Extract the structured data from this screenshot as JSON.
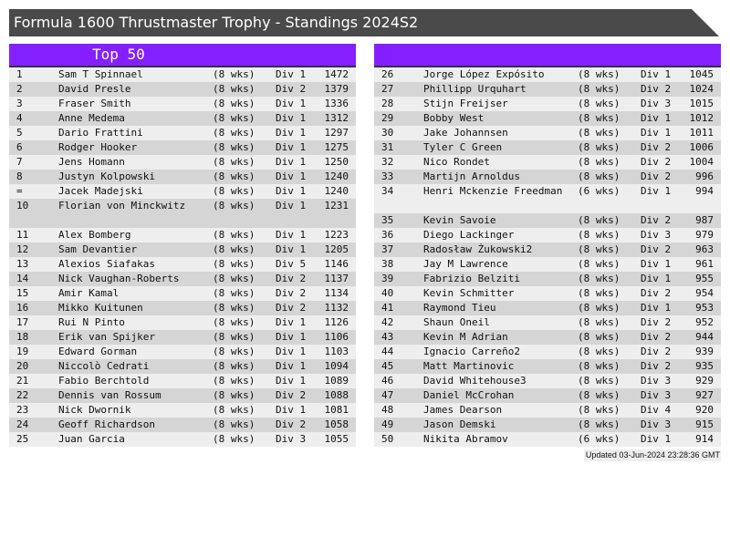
{
  "title": "Formula 1600 Thrustmaster Trophy - Standings 2024S2",
  "left_table": {
    "header": "Top 50",
    "rows": [
      {
        "rank": "1",
        "name": "Sam T Spinnael",
        "weeks": "(8 wks)",
        "div": "Div 1",
        "score": "1472"
      },
      {
        "rank": "2",
        "name": "David Presle",
        "weeks": "(8 wks)",
        "div": "Div 2",
        "score": "1379"
      },
      {
        "rank": "3",
        "name": "Fraser Smith",
        "weeks": "(8 wks)",
        "div": "Div 1",
        "score": "1336"
      },
      {
        "rank": "4",
        "name": "Anne Medema",
        "weeks": "(8 wks)",
        "div": "Div 1",
        "score": "1312"
      },
      {
        "rank": "5",
        "name": "Dario Frattini",
        "weeks": "(8 wks)",
        "div": "Div 1",
        "score": "1297"
      },
      {
        "rank": "6",
        "name": "Rodger Hooker",
        "weeks": "(8 wks)",
        "div": "Div 1",
        "score": "1275"
      },
      {
        "rank": "7",
        "name": "Jens Homann",
        "weeks": "(8 wks)",
        "div": "Div 1",
        "score": "1250"
      },
      {
        "rank": "8",
        "name": "Justyn Kolpowski",
        "weeks": "(8 wks)",
        "div": "Div 1",
        "score": "1240"
      },
      {
        "rank": "=",
        "name": "Jacek Madejski",
        "weeks": "(8 wks)",
        "div": "Div 1",
        "score": "1240"
      },
      {
        "rank": "10",
        "name": "Florian von Minckwitz",
        "weeks": "(8 wks)",
        "div": "Div 1",
        "score": "1231"
      },
      {
        "rank": "11",
        "name": "Alex Bomberg",
        "weeks": "(8 wks)",
        "div": "Div 1",
        "score": "1223"
      },
      {
        "rank": "12",
        "name": "Sam Devantier",
        "weeks": "(8 wks)",
        "div": "Div 1",
        "score": "1205"
      },
      {
        "rank": "13",
        "name": "Alexios Siafakas",
        "weeks": "(8 wks)",
        "div": "Div 5",
        "score": "1146"
      },
      {
        "rank": "14",
        "name": "Nick Vaughan-Roberts",
        "weeks": "(8 wks)",
        "div": "Div 2",
        "score": "1137"
      },
      {
        "rank": "15",
        "name": "Amir Kamal",
        "weeks": "(8 wks)",
        "div": "Div 2",
        "score": "1134"
      },
      {
        "rank": "16",
        "name": "Mikko Kuitunen",
        "weeks": "(8 wks)",
        "div": "Div 2",
        "score": "1132"
      },
      {
        "rank": "17",
        "name": "Rui N Pinto",
        "weeks": "(8 wks)",
        "div": "Div 1",
        "score": "1126"
      },
      {
        "rank": "18",
        "name": "Erik van Spijker",
        "weeks": "(8 wks)",
        "div": "Div 1",
        "score": "1106"
      },
      {
        "rank": "19",
        "name": "Edward Gorman",
        "weeks": "(8 wks)",
        "div": "Div 1",
        "score": "1103"
      },
      {
        "rank": "20",
        "name": "Niccolò Cedrati",
        "weeks": "(8 wks)",
        "div": "Div 1",
        "score": "1094"
      },
      {
        "rank": "21",
        "name": "Fabio Berchtold",
        "weeks": "(8 wks)",
        "div": "Div 1",
        "score": "1089"
      },
      {
        "rank": "22",
        "name": "Dennis van Rossum",
        "weeks": "(8 wks)",
        "div": "Div 2",
        "score": "1088"
      },
      {
        "rank": "23",
        "name": "Nick Dwornik",
        "weeks": "(8 wks)",
        "div": "Div 1",
        "score": "1081"
      },
      {
        "rank": "24",
        "name": "Geoff Richardson",
        "weeks": "(8 wks)",
        "div": "Div 2",
        "score": "1058"
      },
      {
        "rank": "25",
        "name": "Juan Garcia",
        "weeks": "(8 wks)",
        "div": "Div 3",
        "score": "1055"
      }
    ]
  },
  "right_table": {
    "header": "",
    "rows": [
      {
        "rank": "26",
        "name": "Jorge López Expósito",
        "weeks": "(8 wks)",
        "div": "Div 1",
        "score": "1045"
      },
      {
        "rank": "27",
        "name": "Phillipp Urquhart",
        "weeks": "(8 wks)",
        "div": "Div 2",
        "score": "1024"
      },
      {
        "rank": "28",
        "name": "Stijn Freijser",
        "weeks": "(8 wks)",
        "div": "Div 3",
        "score": "1015"
      },
      {
        "rank": "29",
        "name": "Bobby West",
        "weeks": "(8 wks)",
        "div": "Div 1",
        "score": "1012"
      },
      {
        "rank": "30",
        "name": "Jake Johannsen",
        "weeks": "(8 wks)",
        "div": "Div 1",
        "score": "1011"
      },
      {
        "rank": "31",
        "name": "Tyler C Green",
        "weeks": "(8 wks)",
        "div": "Div 2",
        "score": "1006"
      },
      {
        "rank": "32",
        "name": "Nico Rondet",
        "weeks": "(8 wks)",
        "div": "Div 2",
        "score": "1004"
      },
      {
        "rank": "33",
        "name": "Martijn Arnoldus",
        "weeks": "(8 wks)",
        "div": "Div 2",
        "score": "996"
      },
      {
        "rank": "34",
        "name": "Henri Mckenzie Freedman",
        "weeks": "(6 wks)",
        "div": "Div 1",
        "score": "994"
      },
      {
        "rank": "35",
        "name": "Kevin Savoie",
        "weeks": "(8 wks)",
        "div": "Div 2",
        "score": "987"
      },
      {
        "rank": "36",
        "name": "Diego Lackinger",
        "weeks": "(8 wks)",
        "div": "Div 3",
        "score": "979"
      },
      {
        "rank": "37",
        "name": "Radosław Żukowski2",
        "weeks": "(8 wks)",
        "div": "Div 2",
        "score": "963"
      },
      {
        "rank": "38",
        "name": "Jay M Lawrence",
        "weeks": "(8 wks)",
        "div": "Div 1",
        "score": "961"
      },
      {
        "rank": "39",
        "name": "Fabrizio Belziti",
        "weeks": "(8 wks)",
        "div": "Div 1",
        "score": "955"
      },
      {
        "rank": "40",
        "name": "Kevin Schmitter",
        "weeks": "(8 wks)",
        "div": "Div 2",
        "score": "954"
      },
      {
        "rank": "41",
        "name": "Raymond Tieu",
        "weeks": "(8 wks)",
        "div": "Div 1",
        "score": "953"
      },
      {
        "rank": "42",
        "name": "Shaun Oneil",
        "weeks": "(8 wks)",
        "div": "Div 2",
        "score": "952"
      },
      {
        "rank": "43",
        "name": "Kevin M Adrian",
        "weeks": "(8 wks)",
        "div": "Div 2",
        "score": "944"
      },
      {
        "rank": "44",
        "name": "Ignacio Carreño2",
        "weeks": "(8 wks)",
        "div": "Div 2",
        "score": "939"
      },
      {
        "rank": "45",
        "name": "Matt Martinovic",
        "weeks": "(8 wks)",
        "div": "Div 2",
        "score": "935"
      },
      {
        "rank": "46",
        "name": "David Whitehouse3",
        "weeks": "(8 wks)",
        "div": "Div 3",
        "score": "929"
      },
      {
        "rank": "47",
        "name": "Daniel McCrohan",
        "weeks": "(8 wks)",
        "div": "Div 3",
        "score": "927"
      },
      {
        "rank": "48",
        "name": "James Dearson",
        "weeks": "(8 wks)",
        "div": "Div 4",
        "score": "920"
      },
      {
        "rank": "49",
        "name": "Jason Demski",
        "weeks": "(8 wks)",
        "div": "Div 3",
        "score": "915"
      },
      {
        "rank": "50",
        "name": "Nikita Abramov",
        "weeks": "(6 wks)",
        "div": "Div 1",
        "score": "914"
      }
    ]
  },
  "footer": "Updated 03-Jun-2024 23:28:36 GMT",
  "colors": {
    "title_bar": "#4a4a4a",
    "header": "#8420ff",
    "row_light": "#eeeeee",
    "row_dark": "#d5d5d5"
  }
}
